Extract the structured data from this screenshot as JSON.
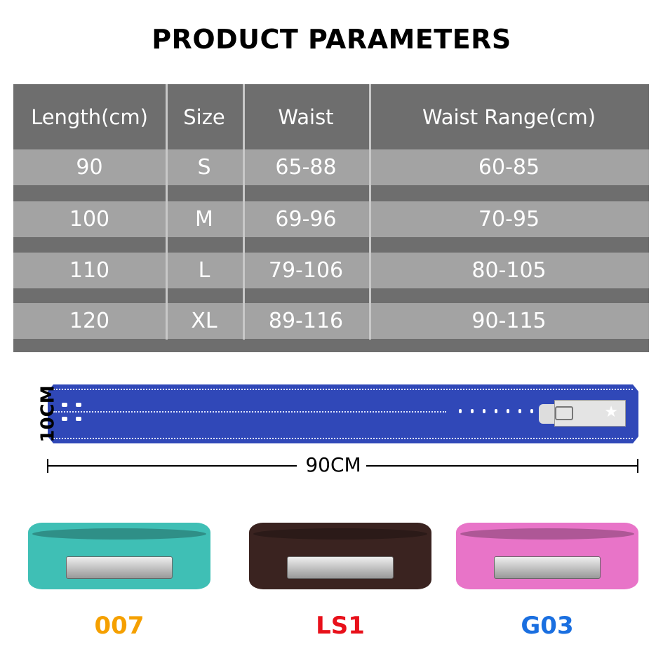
{
  "title": "PRODUCT PARAMETERS",
  "table": {
    "headers": [
      "Length(cm)",
      "Size",
      "Waist",
      "Waist Range(cm)"
    ],
    "rows": [
      [
        "90",
        "S",
        "65-88",
        "60-85"
      ],
      [
        "100",
        "M",
        "69-96",
        "70-95"
      ],
      [
        "110",
        "L",
        "79-106",
        "80-105"
      ],
      [
        "120",
        "XL",
        "89-116",
        "90-115"
      ]
    ]
  },
  "diagram": {
    "width_label": "10CM",
    "length_label": "90CM",
    "belt_color": "#3048b8"
  },
  "products": [
    {
      "name": "007",
      "label_color": "#f5a000",
      "belt_color": "#3fbfb5"
    },
    {
      "name": "LS1",
      "label_color": "#e8101a",
      "belt_color": "#3a2320"
    },
    {
      "name": "G03",
      "label_color": "#1a6fe0",
      "belt_color": "#e874c8"
    }
  ]
}
